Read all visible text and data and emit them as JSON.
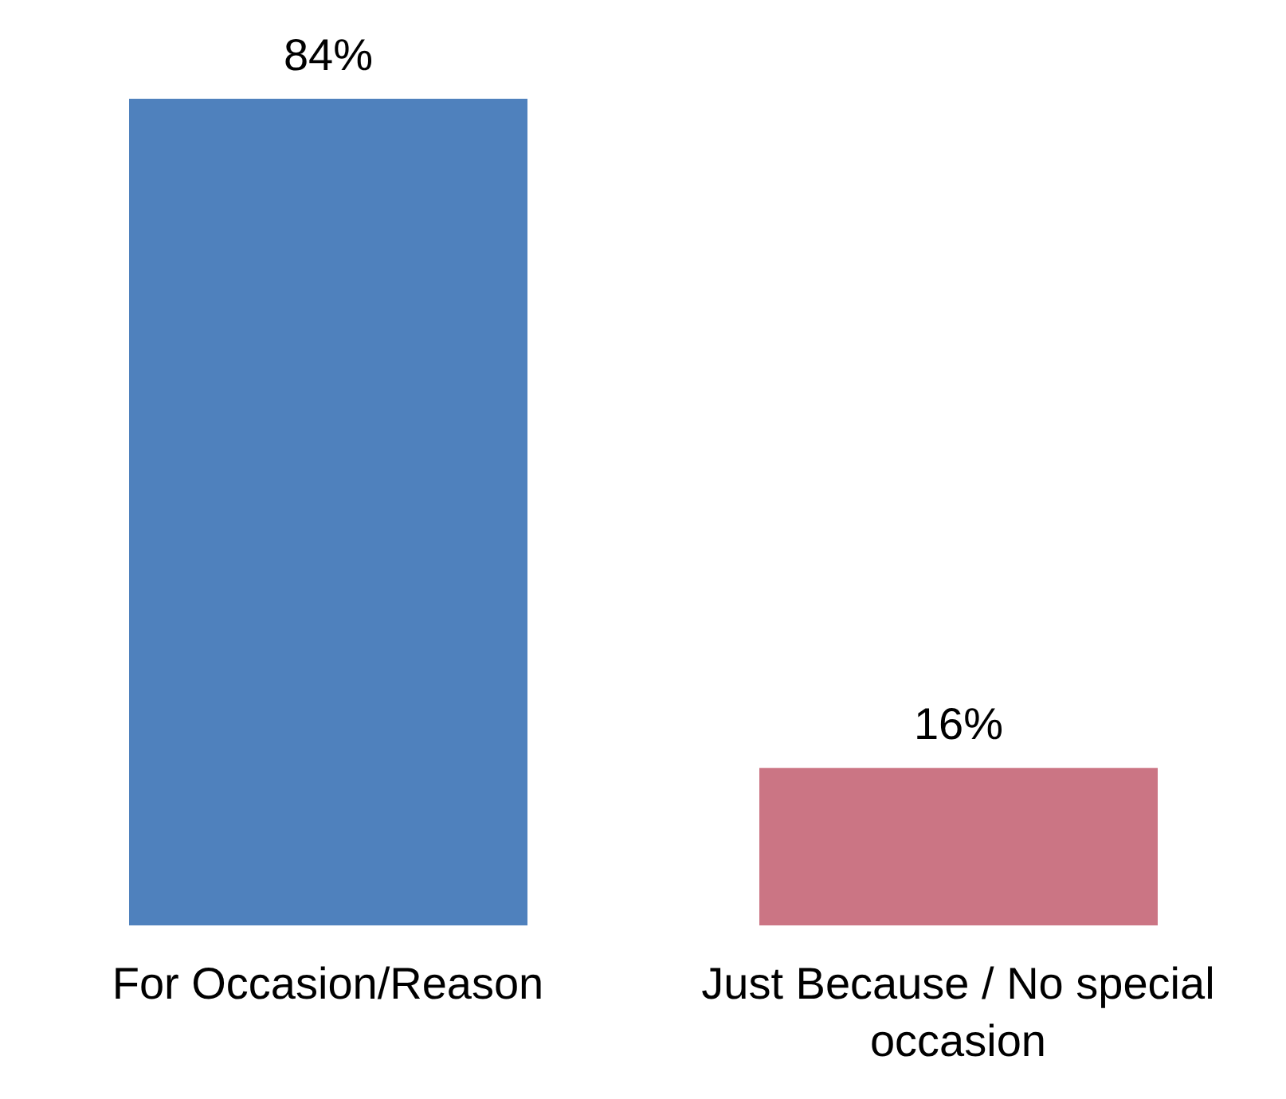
{
  "chart_data": {
    "type": "bar",
    "categories": [
      "For Occasion/Reason",
      "Just Because / No special occasion"
    ],
    "values": [
      84,
      16
    ],
    "colors": [
      "#4f81bd",
      "#cb7584"
    ],
    "value_labels": [
      "84%",
      "16%"
    ],
    "grid": false
  }
}
